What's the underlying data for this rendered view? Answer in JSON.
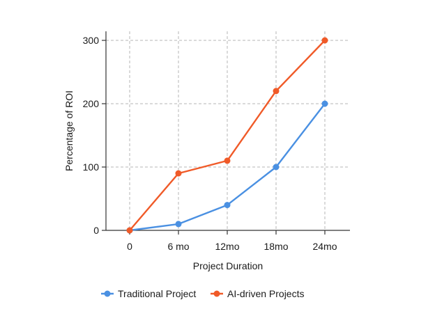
{
  "chart_data": {
    "type": "line",
    "categories": [
      "0",
      "6 mo",
      "12mo",
      "18mo",
      "24mo"
    ],
    "series": [
      {
        "name": "Traditional Project",
        "values": [
          0,
          10,
          40,
          100,
          200
        ],
        "color": "#4a90e2"
      },
      {
        "name": "AI-driven Projects",
        "values": [
          0,
          90,
          110,
          220,
          300
        ],
        "color": "#f05a28"
      }
    ],
    "xlabel": "Project Duration",
    "ylabel": "Percentage of ROI",
    "ylim": [
      0,
      300
    ],
    "yticks": [
      0,
      100,
      200,
      300
    ],
    "grid": true,
    "legend_position": "bottom"
  }
}
